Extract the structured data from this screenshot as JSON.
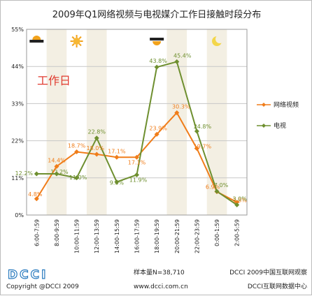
{
  "chart_data": {
    "type": "line",
    "title": "2009年Q1网络视频与电视媒介工作日接触时段分布",
    "annotation": "工作日",
    "categories": [
      "6:00-7:59",
      "8:00-9:59",
      "10:00-11:59",
      "12:00-13:59",
      "14:00-15:59",
      "16:00-17:59",
      "18:00-19:59",
      "20:00-21:59",
      "22:00-23:59",
      "0:00-1:59",
      "2:00-5:59"
    ],
    "ylim": [
      0,
      55
    ],
    "yticks": [
      "0%",
      "11%",
      "22%",
      "33%",
      "44%",
      "55%"
    ],
    "ytick_values": [
      0,
      11,
      22,
      33,
      44,
      55
    ],
    "grid": true,
    "legend_position": "right",
    "series": [
      {
        "name": "网络视频",
        "color": "#f07d1a",
        "marker": "diamond",
        "values": [
          4.8,
          14.4,
          18.7,
          18.0,
          17.1,
          17.1,
          23.9,
          30.3,
          19.7,
          6.9,
          3.8
        ],
        "labels": [
          "4.8%",
          "14.4%",
          "18.7%",
          "18.0%",
          "17.1%",
          "17.1%",
          "23.9%",
          "30.3%",
          "19.7%",
          "6.9%",
          "3.8%"
        ]
      },
      {
        "name": "电视",
        "color": "#6e8f2f",
        "marker": "diamond",
        "values": [
          12.2,
          12.2,
          11.0,
          22.8,
          9.8,
          11.9,
          43.8,
          45.4,
          24.8,
          7.0,
          3.0
        ],
        "labels": [
          "12.2%",
          "12.2%",
          "11.0%",
          "22.8%",
          "9.8%",
          "11.9%",
          "43.8%",
          "45.4%",
          "24.8%",
          "7.0%",
          "3.0%"
        ]
      }
    ],
    "shaded_category_indices": [
      1,
      3,
      7,
      9
    ],
    "time_icons": [
      {
        "name": "sunrise-icon",
        "category_index": 0
      },
      {
        "name": "sun-icon",
        "category_index": 2
      },
      {
        "name": "sunset-icon",
        "category_index": 6
      },
      {
        "name": "moon-icon",
        "category_index": 9
      }
    ]
  },
  "footer": {
    "logo": "DCCI",
    "copyright": "Copyright @DCCI 2009",
    "sample": "样本量N=38,710",
    "website": "www.dcci.com.cn",
    "source1": "DCCI 2009中国互联网观察",
    "source2": "DCCI互联网数据中心"
  }
}
